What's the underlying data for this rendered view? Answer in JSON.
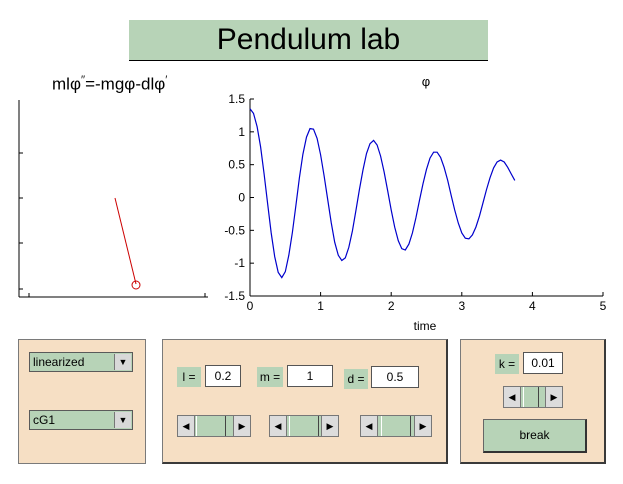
{
  "header": {
    "title": "Pendulum lab"
  },
  "left_axes": {
    "equation_main": "mlφ",
    "equation_sup1": "′′",
    "equation_rest": "=-mgφ-dlφ",
    "equation_sup2": "′"
  },
  "chart_data": {
    "type": "line",
    "title": "φ",
    "xlabel": "time",
    "ylabel": "",
    "xlim": [
      0,
      5
    ],
    "ylim": [
      -1.5,
      1.5
    ],
    "xticks": [
      "0",
      "1",
      "2",
      "3",
      "4",
      "5"
    ],
    "yticks": [
      "1.5",
      "1",
      "0.5",
      "0",
      "-0.5",
      "-1",
      "-1.5"
    ],
    "color": "#0000cc",
    "x": [
      0,
      0.05,
      0.1,
      0.15,
      0.2,
      0.25,
      0.3,
      0.35,
      0.4,
      0.45,
      0.5,
      0.55,
      0.6,
      0.65,
      0.7,
      0.75,
      0.8,
      0.85,
      0.9,
      0.95,
      1.0,
      1.05,
      1.1,
      1.15,
      1.2,
      1.25,
      1.3,
      1.35,
      1.4,
      1.45,
      1.5,
      1.55,
      1.6,
      1.65,
      1.7,
      1.75,
      1.8,
      1.85,
      1.9,
      1.95,
      2.0,
      2.05,
      2.1,
      2.15,
      2.2,
      2.25,
      2.3,
      2.35,
      2.4,
      2.45,
      2.5,
      2.55,
      2.6,
      2.65,
      2.7,
      2.75,
      2.8,
      2.85,
      2.9,
      2.95,
      3.0,
      3.05,
      3.1,
      3.15,
      3.2,
      3.25,
      3.3,
      3.35,
      3.4,
      3.45,
      3.5,
      3.55,
      3.6,
      3.65,
      3.7,
      3.75
    ],
    "y": [
      1.35,
      1.28,
      1.08,
      0.77,
      0.36,
      -0.09,
      -0.54,
      -0.9,
      -1.14,
      -1.22,
      -1.13,
      -0.88,
      -0.53,
      -0.12,
      0.3,
      0.66,
      0.92,
      1.05,
      1.04,
      0.9,
      0.65,
      0.33,
      -0.03,
      -0.38,
      -0.68,
      -0.88,
      -0.96,
      -0.92,
      -0.76,
      -0.51,
      -0.2,
      0.12,
      0.42,
      0.67,
      0.82,
      0.87,
      0.8,
      0.63,
      0.39,
      0.1,
      -0.19,
      -0.45,
      -0.66,
      -0.78,
      -0.8,
      -0.71,
      -0.54,
      -0.31,
      -0.05,
      0.21,
      0.43,
      0.6,
      0.69,
      0.69,
      0.61,
      0.46,
      0.26,
      0.03,
      -0.19,
      -0.39,
      -0.54,
      -0.62,
      -0.63,
      -0.57,
      -0.45,
      -0.28,
      -0.08,
      0.12,
      0.3,
      0.45,
      0.54,
      0.57,
      0.54,
      0.46,
      0.36,
      0.26
    ]
  },
  "pendulum": {
    "rod_color": "#cc0000"
  },
  "controls_left": {
    "mode_select": "linearized",
    "controller_select": "cG1"
  },
  "params": {
    "l_label": "l =",
    "l_value": "0.2",
    "m_label": "m =",
    "m_value": "1",
    "d_label": "d =",
    "d_value": "0.5",
    "l_slider": 0.2,
    "m_slider": 0.5,
    "d_slider": 0.5
  },
  "controls_right": {
    "k_label": "k =",
    "k_value": "0.01",
    "k_slider": 0.3,
    "break_label": "break"
  },
  "icons": {
    "dropdown": "chevron-down-icon",
    "left": "arrow-left-icon",
    "right": "arrow-right-icon"
  }
}
